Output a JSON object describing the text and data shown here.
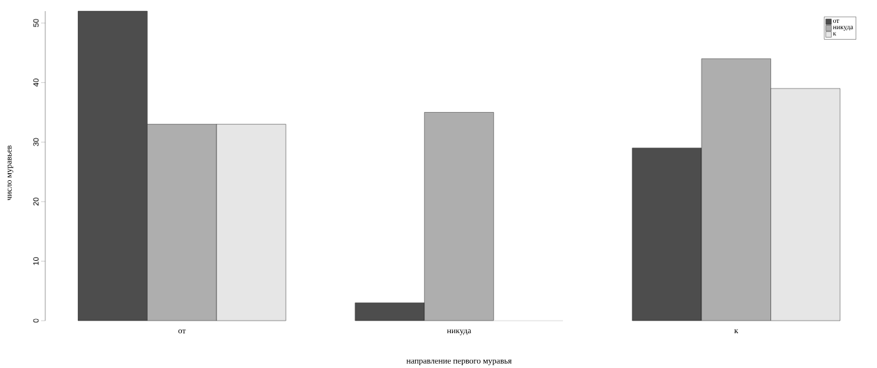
{
  "chart_data": {
    "type": "bar",
    "xlabel": "направление первого муравья",
    "ylabel": "число муравьев",
    "categories": [
      "от",
      "никуда",
      "к"
    ],
    "series": [
      {
        "name": "от",
        "color": "#4d4d4d",
        "values": [
          52,
          3,
          29
        ]
      },
      {
        "name": "никуда",
        "color": "#aeaeae",
        "values": [
          33,
          35,
          44
        ]
      },
      {
        "name": "к",
        "color": "#e6e6e6",
        "values": [
          33,
          0,
          39
        ]
      }
    ],
    "ylim": [
      0,
      52
    ],
    "yticks": [
      0,
      10,
      20,
      30,
      40,
      50
    ],
    "grid": false,
    "legend": "top right"
  }
}
